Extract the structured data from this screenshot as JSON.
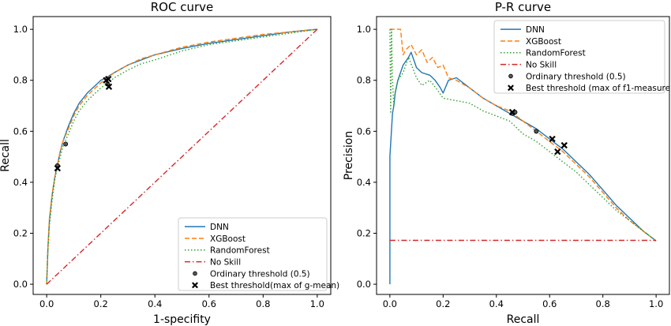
{
  "chart_data": [
    {
      "type": "line",
      "title": "ROC curve",
      "xlabel": "1-specifity",
      "ylabel": "Recall",
      "xlim": [
        -0.05,
        1.05
      ],
      "ylim": [
        -0.04,
        1.05
      ],
      "xticks": [
        "0.0",
        "0.2",
        "0.4",
        "0.6",
        "0.8",
        "1.0"
      ],
      "yticks": [
        "0.0",
        "0.2",
        "0.4",
        "0.6",
        "0.8",
        "1.0"
      ],
      "legend_position": "lower-right",
      "legend": [
        "DNN",
        "XGBoost",
        "RandomForest",
        "No Skill",
        "Ordinary threshold (0.5)",
        "Best threshold(max of g-mean)"
      ],
      "series": [
        {
          "name": "DNN",
          "style": "solid",
          "color": "#1f77b4",
          "x": [
            0,
            0.005,
            0.01,
            0.02,
            0.03,
            0.04,
            0.05,
            0.06,
            0.08,
            0.1,
            0.12,
            0.15,
            0.18,
            0.2,
            0.22,
            0.25,
            0.3,
            0.35,
            0.4,
            0.5,
            0.6,
            0.7,
            0.8,
            0.9,
            1.0
          ],
          "y": [
            0,
            0.15,
            0.25,
            0.35,
            0.42,
            0.47,
            0.52,
            0.56,
            0.62,
            0.67,
            0.71,
            0.75,
            0.78,
            0.8,
            0.81,
            0.83,
            0.86,
            0.88,
            0.9,
            0.925,
            0.945,
            0.96,
            0.975,
            0.99,
            1.0
          ]
        },
        {
          "name": "XGBoost",
          "style": "dashed",
          "color": "#ff7f0e",
          "x": [
            0,
            0.005,
            0.01,
            0.02,
            0.03,
            0.04,
            0.05,
            0.06,
            0.08,
            0.1,
            0.12,
            0.15,
            0.18,
            0.2,
            0.22,
            0.25,
            0.3,
            0.35,
            0.4,
            0.5,
            0.6,
            0.7,
            0.8,
            0.9,
            1.0
          ],
          "y": [
            0,
            0.15,
            0.26,
            0.35,
            0.42,
            0.47,
            0.52,
            0.56,
            0.61,
            0.66,
            0.7,
            0.74,
            0.77,
            0.79,
            0.805,
            0.83,
            0.86,
            0.885,
            0.9,
            0.93,
            0.95,
            0.965,
            0.98,
            0.99,
            1.0
          ]
        },
        {
          "name": "RandomForest",
          "style": "dotted",
          "color": "#2ca02c",
          "x": [
            0,
            0.005,
            0.01,
            0.02,
            0.03,
            0.04,
            0.05,
            0.06,
            0.08,
            0.1,
            0.12,
            0.15,
            0.18,
            0.2,
            0.22,
            0.25,
            0.3,
            0.35,
            0.4,
            0.5,
            0.6,
            0.7,
            0.8,
            0.9,
            1.0
          ],
          "y": [
            0,
            0.14,
            0.23,
            0.33,
            0.41,
            0.46,
            0.5,
            0.54,
            0.59,
            0.64,
            0.68,
            0.72,
            0.75,
            0.77,
            0.785,
            0.81,
            0.84,
            0.865,
            0.88,
            0.915,
            0.94,
            0.955,
            0.97,
            0.985,
            1.0
          ]
        },
        {
          "name": "No Skill",
          "style": "dashdot",
          "color": "#d62728",
          "x": [
            0,
            1
          ],
          "y": [
            0,
            1
          ]
        }
      ],
      "markers": [
        {
          "kind": "ordinary",
          "x": 0.04,
          "y": 0.465
        },
        {
          "kind": "ordinary",
          "x": 0.07,
          "y": 0.55
        },
        {
          "kind": "ordinary",
          "x": 0.225,
          "y": 0.785
        },
        {
          "kind": "best",
          "x": 0.04,
          "y": 0.455
        },
        {
          "kind": "best",
          "x": 0.22,
          "y": 0.8
        },
        {
          "kind": "best",
          "x": 0.228,
          "y": 0.805
        },
        {
          "kind": "best",
          "x": 0.23,
          "y": 0.775
        }
      ]
    },
    {
      "type": "line",
      "title": "P-R curve",
      "xlabel": "Recall",
      "ylabel": "Precision",
      "xlim": [
        -0.05,
        1.05
      ],
      "ylim": [
        -0.04,
        1.05
      ],
      "xticks": [
        "0.0",
        "0.2",
        "0.4",
        "0.6",
        "0.8",
        "1.0"
      ],
      "yticks": [
        "0.0",
        "0.2",
        "0.4",
        "0.6",
        "0.8",
        "1.0"
      ],
      "legend_position": "upper-right",
      "legend": [
        "DNN",
        "XGBoost",
        "RandomForest",
        "No Skill",
        "Ordinary threshold (0.5)",
        "Best threshold (max of f1-measure)"
      ],
      "series": [
        {
          "name": "DNN",
          "style": "solid",
          "color": "#1f77b4",
          "x": [
            0.0,
            0.0,
            0.01,
            0.015,
            0.02,
            0.03,
            0.05,
            0.07,
            0.08,
            0.1,
            0.12,
            0.15,
            0.17,
            0.19,
            0.2,
            0.22,
            0.25,
            0.3,
            0.35,
            0.4,
            0.45,
            0.5,
            0.55,
            0.6,
            0.65,
            0.7,
            0.75,
            0.8,
            0.85,
            0.9,
            0.95,
            1.0
          ],
          "y": [
            0.0,
            0.5,
            0.67,
            0.7,
            0.75,
            0.8,
            0.86,
            0.89,
            0.91,
            0.85,
            0.83,
            0.82,
            0.8,
            0.77,
            0.75,
            0.8,
            0.81,
            0.77,
            0.73,
            0.7,
            0.67,
            0.64,
            0.61,
            0.57,
            0.53,
            0.48,
            0.43,
            0.37,
            0.31,
            0.26,
            0.21,
            0.17
          ]
        },
        {
          "name": "XGBoost",
          "style": "dashed",
          "color": "#ff7f0e",
          "x": [
            0.0,
            0.003,
            0.01,
            0.02,
            0.04,
            0.05,
            0.06,
            0.08,
            0.1,
            0.12,
            0.14,
            0.16,
            0.18,
            0.2,
            0.22,
            0.25,
            0.3,
            0.35,
            0.4,
            0.45,
            0.5,
            0.55,
            0.6,
            0.65,
            0.7,
            0.75,
            0.8,
            0.85,
            0.9,
            0.95,
            1.0
          ],
          "y": [
            1.0,
            1.0,
            1.0,
            1.0,
            1.0,
            0.9,
            0.92,
            0.94,
            0.9,
            0.92,
            0.87,
            0.89,
            0.85,
            0.86,
            0.81,
            0.8,
            0.77,
            0.73,
            0.7,
            0.68,
            0.64,
            0.6,
            0.56,
            0.52,
            0.47,
            0.42,
            0.36,
            0.3,
            0.25,
            0.21,
            0.17
          ]
        },
        {
          "name": "RandomForest",
          "style": "dotted",
          "color": "#2ca02c",
          "x": [
            0.0,
            0.003,
            0.006,
            0.01,
            0.015,
            0.02,
            0.03,
            0.05,
            0.07,
            0.1,
            0.12,
            0.15,
            0.18,
            0.2,
            0.25,
            0.3,
            0.35,
            0.4,
            0.45,
            0.5,
            0.55,
            0.6,
            0.65,
            0.7,
            0.75,
            0.8,
            0.85,
            0.9,
            0.95,
            1.0
          ],
          "y": [
            1.0,
            0.67,
            1.0,
            0.8,
            0.7,
            0.75,
            0.8,
            0.83,
            0.89,
            0.81,
            0.78,
            0.8,
            0.76,
            0.73,
            0.72,
            0.71,
            0.68,
            0.66,
            0.64,
            0.59,
            0.56,
            0.52,
            0.48,
            0.44,
            0.39,
            0.34,
            0.29,
            0.25,
            0.21,
            0.17
          ]
        },
        {
          "name": "No Skill",
          "style": "dashdot",
          "color": "#d62728",
          "x": [
            0,
            1
          ],
          "y": [
            0.172,
            0.172
          ]
        }
      ],
      "markers": [
        {
          "kind": "ordinary",
          "x": 0.46,
          "y": 0.67
        },
        {
          "kind": "ordinary",
          "x": 0.47,
          "y": 0.675
        },
        {
          "kind": "ordinary",
          "x": 0.55,
          "y": 0.6
        },
        {
          "kind": "best",
          "x": 0.46,
          "y": 0.675
        },
        {
          "kind": "best",
          "x": 0.61,
          "y": 0.57
        },
        {
          "kind": "best",
          "x": 0.63,
          "y": 0.52
        },
        {
          "kind": "best",
          "x": 0.655,
          "y": 0.545
        }
      ]
    }
  ]
}
